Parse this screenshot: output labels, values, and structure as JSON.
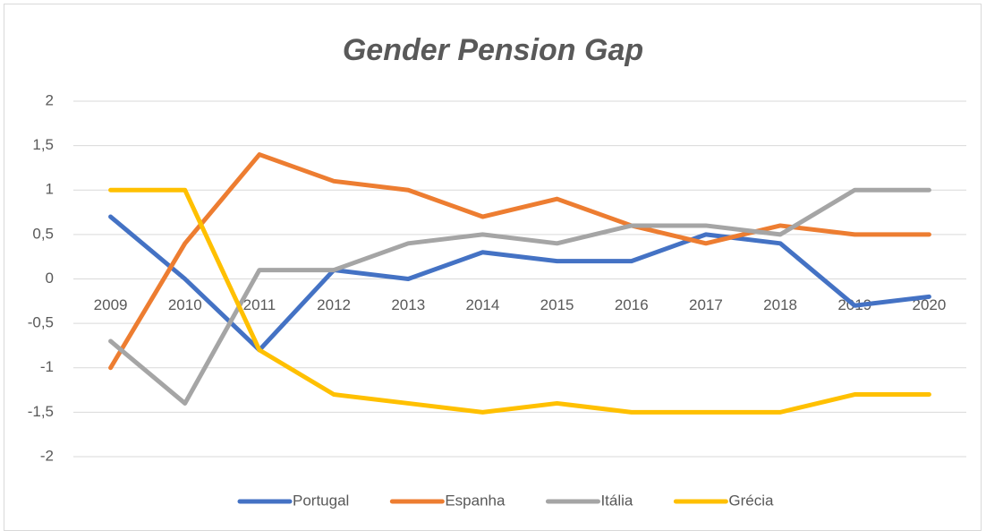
{
  "chart_data": {
    "type": "line",
    "title": "Gender Pension Gap",
    "categories": [
      "2009",
      "2010",
      "2011",
      "2012",
      "2013",
      "2014",
      "2015",
      "2016",
      "2017",
      "2018",
      "2019",
      "2020"
    ],
    "series": [
      {
        "name": "Portugal",
        "color": "#4472c4",
        "values": [
          0.7,
          0.0,
          -0.8,
          0.1,
          0.0,
          0.3,
          0.2,
          0.2,
          0.5,
          0.4,
          -0.3,
          -0.2
        ]
      },
      {
        "name": "Espanha",
        "color": "#ed7d31",
        "values": [
          -1.0,
          0.4,
          1.4,
          1.1,
          1.0,
          0.7,
          0.9,
          0.6,
          0.4,
          0.6,
          0.5,
          0.5
        ]
      },
      {
        "name": "Itália",
        "color": "#a5a5a5",
        "values": [
          -0.7,
          -1.4,
          0.1,
          0.1,
          0.4,
          0.5,
          0.4,
          0.6,
          0.6,
          0.5,
          1.0,
          1.0
        ]
      },
      {
        "name": "Grécia",
        "color": "#ffc000",
        "values": [
          1.0,
          1.0,
          -0.8,
          -1.3,
          -1.4,
          -1.5,
          -1.4,
          -1.5,
          -1.5,
          -1.5,
          -1.3,
          -1.3
        ]
      }
    ],
    "ylim": [
      -2,
      2
    ],
    "yticks": [
      -2,
      {
        "value": -1.5,
        "label": "-1,5"
      },
      -1,
      {
        "value": -0.5,
        "label": "-0,5"
      },
      0,
      {
        "value": 0.5,
        "label": "0,5"
      },
      1,
      {
        "value": 1.5,
        "label": "1,5"
      },
      2
    ],
    "grid": true,
    "legend": "bottom"
  }
}
